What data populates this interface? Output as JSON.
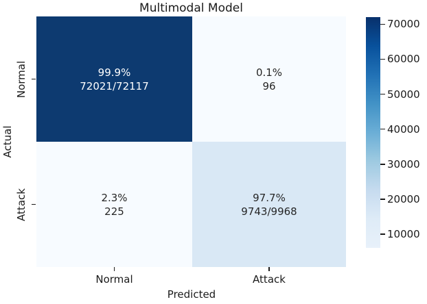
{
  "title": "Multimodal Model",
  "axes": {
    "x_label": "Predicted",
    "y_label": "Actual",
    "x_ticks": [
      "Normal",
      "Attack"
    ],
    "y_ticks": [
      "Normal",
      "Attack"
    ]
  },
  "chart_data": {
    "type": "heatmap",
    "title": "Multimodal Model",
    "xlabel": "Predicted",
    "ylabel": "Actual",
    "x_categories": [
      "Normal",
      "Attack"
    ],
    "y_categories": [
      "Normal",
      "Attack"
    ],
    "cells": [
      {
        "row": "Normal",
        "col": "Normal",
        "percent": "99.9%",
        "count": "72021/72117",
        "value": 72021,
        "color": "#0d3a70",
        "text_color": "#ffffff"
      },
      {
        "row": "Normal",
        "col": "Attack",
        "percent": "0.1%",
        "count": "96",
        "value": 96,
        "color": "#f7fbff",
        "text_color": "#262626"
      },
      {
        "row": "Attack",
        "col": "Normal",
        "percent": "2.3%",
        "count": "225",
        "value": 225,
        "color": "#f7fbff",
        "text_color": "#262626"
      },
      {
        "row": "Attack",
        "col": "Attack",
        "percent": "97.7%",
        "count": "9743/9968",
        "value": 9743,
        "color": "#d9e8f5",
        "text_color": "#262626"
      }
    ],
    "colorbar": {
      "ticks": [
        70000,
        60000,
        50000,
        40000,
        30000,
        20000,
        10000
      ],
      "vmax": 72021,
      "vmin_display": 6100,
      "colormap": "Blues",
      "gradient_stops": [
        "#08306b",
        "#08519c",
        "#2171b5",
        "#4292c6",
        "#6baed6",
        "#9ecae1",
        "#c6dbef",
        "#deebf7",
        "#e8f1fa"
      ]
    },
    "legend_position": "right-colorbar",
    "grid": false
  },
  "colors": {
    "background": "#ffffff",
    "cell_max": "#0d3a70",
    "cell_min": "#f7fbff",
    "cell_low": "#d9e8f5",
    "text": "#1a1a1a"
  }
}
